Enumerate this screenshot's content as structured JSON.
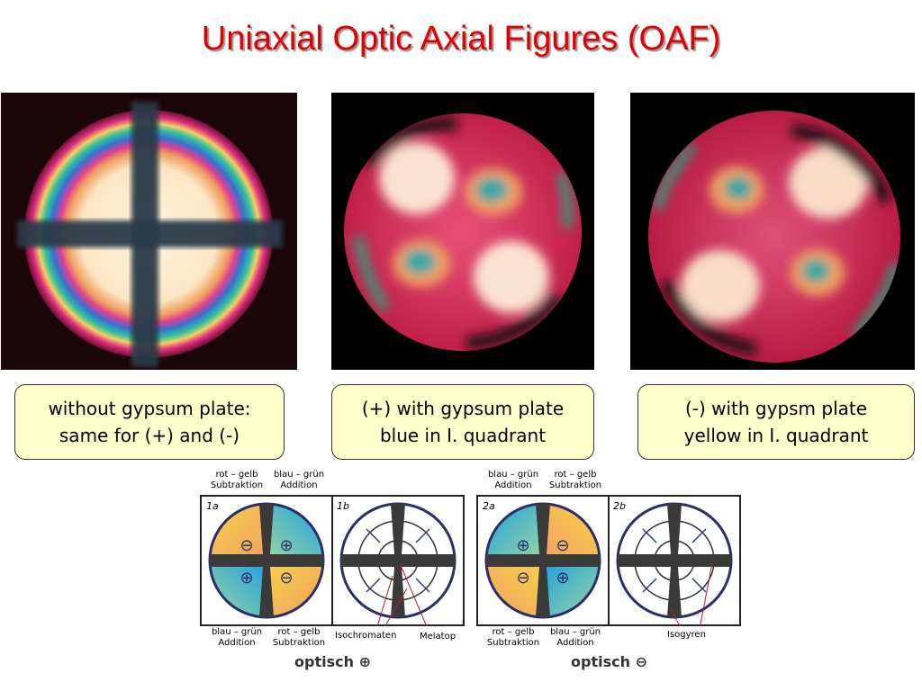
{
  "title": "Uniaxial Optic Axial Figures (OAF)",
  "captions": [
    {
      "line1": "without gypsum plate:",
      "line2": "same for (+) and (-)"
    },
    {
      "line1": "(+) with gypsum plate",
      "line2": "blue in I. quadrant"
    },
    {
      "line1": "(-) with gypsm plate",
      "line2": "yellow in I. quadrant"
    }
  ],
  "diagram_plus": {
    "top_left": {
      "line1": "rot – gelb",
      "line2": "Subtraktion"
    },
    "top_right": {
      "line1": "blau – grün",
      "line2": "Addition"
    },
    "bottom_left": {
      "line1": "blau – grün",
      "line2": "Addition"
    },
    "bottom_right": {
      "line1": "rot – gelb",
      "line2": "Subtraktion"
    },
    "panel_a": "1a",
    "panel_b": "1b",
    "label_isochromaten": "Isochromaten",
    "label_melatop": "Melatop",
    "optisch": "optisch ⊕"
  },
  "diagram_minus": {
    "top_left": {
      "line1": "blau – grün",
      "line2": "Addition"
    },
    "top_right": {
      "line1": "rot – gelb",
      "line2": "Subtraktion"
    },
    "bottom_left": {
      "line1": "rot – gelb",
      "line2": "Subtraktion"
    },
    "bottom_right": {
      "line1": "blau – grün",
      "line2": "Addition"
    },
    "panel_a": "2a",
    "panel_b": "2b",
    "label_isogyren": "Isogyren",
    "optisch": "optisch ⊖"
  },
  "colors": {
    "title": "#e00000",
    "caption_bg": "#ffffcc",
    "quadrant_blue": "#2aa7e0",
    "quadrant_yellow": "#f7d34a",
    "isogyre": "#333333",
    "circle_outline": "#2a2f6b",
    "arrow": "#2b3a8f",
    "pointer": "#b0202a"
  }
}
